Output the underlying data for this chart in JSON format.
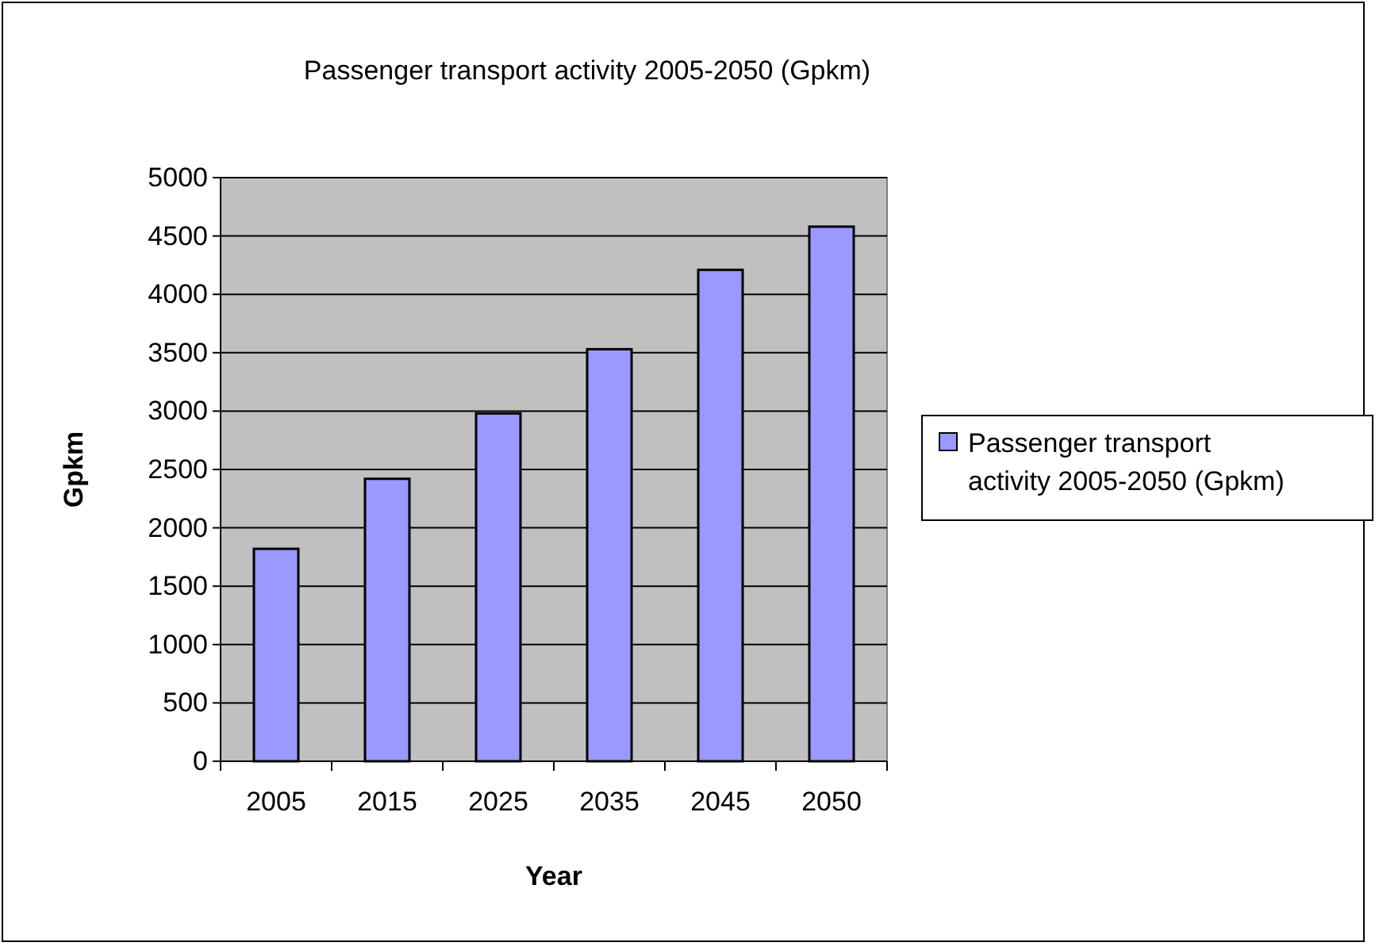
{
  "chart_data": {
    "type": "bar",
    "title": "Passenger transport activity 2005-2050 (Gpkm)",
    "xlabel": "Year",
    "ylabel": "Gpkm",
    "categories": [
      "2005",
      "2015",
      "2025",
      "2035",
      "2045",
      "2050"
    ],
    "series": [
      {
        "name": "Passenger transport activity 2005-2050 (Gpkm)",
        "color": "#9999ff",
        "values": [
          1820,
          2420,
          2980,
          3530,
          4210,
          4580
        ]
      }
    ],
    "ylim": [
      0,
      5000
    ],
    "yticks": [
      0,
      500,
      1000,
      1500,
      2000,
      2500,
      3000,
      3500,
      4000,
      4500,
      5000
    ],
    "grid": "y",
    "legend": "right"
  }
}
